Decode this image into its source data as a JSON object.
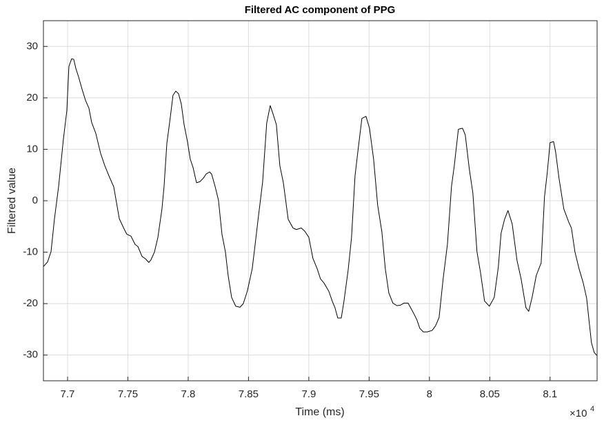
{
  "chart_data": {
    "type": "line",
    "title": "Filtered AC component of PPG",
    "x_label": "Time (ms)",
    "y_label": "Filtered value",
    "x_multiplier": "×10",
    "x_exponent": "4",
    "xlim": [
      76800,
      81390
    ],
    "ylim": [
      -35,
      35
    ],
    "xticks": [
      {
        "value": 77000,
        "label": "7.7"
      },
      {
        "value": 77500,
        "label": "7.75"
      },
      {
        "value": 78000,
        "label": "7.8"
      },
      {
        "value": 78500,
        "label": "7.85"
      },
      {
        "value": 79000,
        "label": "7.9"
      },
      {
        "value": 79500,
        "label": "7.95"
      },
      {
        "value": 80000,
        "label": "8"
      },
      {
        "value": 80500,
        "label": "8.05"
      },
      {
        "value": 81000,
        "label": "8.1"
      }
    ],
    "yticks": [
      -30,
      -20,
      -10,
      0,
      10,
      20,
      30
    ],
    "grid": true,
    "x": [
      76800,
      76834,
      76863,
      76891,
      76926,
      76966,
      76994,
      77011,
      77034,
      77051,
      77069,
      77091,
      77120,
      77149,
      77177,
      77200,
      77234,
      77274,
      77309,
      77349,
      77383,
      77429,
      77469,
      77491,
      77526,
      77560,
      77583,
      77617,
      77646,
      77674,
      77691,
      77720,
      77749,
      77783,
      77800,
      77823,
      77851,
      77874,
      77897,
      77920,
      77943,
      77966,
      77994,
      78017,
      78040,
      78069,
      78097,
      78126,
      78149,
      78177,
      78194,
      78223,
      78251,
      78280,
      78309,
      78331,
      78360,
      78394,
      78429,
      78457,
      78491,
      78531,
      78554,
      78583,
      78617,
      78651,
      78680,
      78703,
      78731,
      78760,
      78789,
      78829,
      78869,
      78897,
      78937,
      78966,
      79000,
      79034,
      79069,
      79097,
      79126,
      79166,
      79194,
      79217,
      79240,
      79269,
      79291,
      79326,
      79354,
      79383,
      79411,
      79440,
      79474,
      79503,
      79537,
      79571,
      79606,
      79634,
      79663,
      79697,
      79731,
      79760,
      79789,
      79823,
      79851,
      79874,
      79897,
      79920,
      79949,
      79983,
      80023,
      80051,
      80080,
      80114,
      80149,
      80183,
      80206,
      80240,
      80274,
      80297,
      80331,
      80360,
      80394,
      80423,
      80457,
      80497,
      80537,
      80571,
      80594,
      80623,
      80651,
      80686,
      80726,
      80760,
      80800,
      80823,
      80851,
      80886,
      80926,
      80954,
      80977,
      81000,
      81029,
      81046,
      81074,
      81114,
      81154,
      81177,
      81206,
      81240,
      81274,
      81303,
      81326,
      81343,
      81366,
      81389
    ],
    "series": [
      {
        "name": "Filtered value",
        "color": "#000000",
        "values": [
          -12.8,
          -11.9,
          -9.9,
          -3.6,
          2.8,
          12.1,
          17.5,
          26.1,
          27.6,
          27.5,
          25.7,
          24.1,
          21.7,
          19.5,
          18.0,
          15.2,
          13.1,
          9.2,
          6.8,
          4.5,
          2.7,
          -3.5,
          -5.5,
          -6.5,
          -6.9,
          -8.5,
          -8.9,
          -10.8,
          -11.3,
          -12.0,
          -11.5,
          -10.0,
          -7.1,
          -1.5,
          2.8,
          11.1,
          16.1,
          20.5,
          21.3,
          20.8,
          18.8,
          14.8,
          11.5,
          8.1,
          6.5,
          3.5,
          3.7,
          4.4,
          5.2,
          5.6,
          5.2,
          2.8,
          0.1,
          -6.5,
          -10.0,
          -14.5,
          -18.8,
          -20.5,
          -20.7,
          -20.0,
          -17.5,
          -13.2,
          -8.7,
          -2.9,
          3.6,
          15.1,
          18.5,
          16.9,
          14.8,
          6.8,
          3.5,
          -3.6,
          -5.3,
          -5.6,
          -5.3,
          -5.9,
          -7.1,
          -11.2,
          -13.2,
          -15.2,
          -16.0,
          -17.6,
          -19.5,
          -20.8,
          -22.8,
          -22.8,
          -19.6,
          -13.5,
          -7.2,
          4.8,
          10.4,
          16.0,
          16.4,
          14.1,
          8.1,
          -0.9,
          -6.1,
          -13.2,
          -17.9,
          -19.9,
          -20.4,
          -20.3,
          -19.9,
          -19.9,
          -21.1,
          -22.1,
          -23.2,
          -24.8,
          -25.5,
          -25.5,
          -25.2,
          -24.3,
          -22.7,
          -15.1,
          -8.5,
          2.8,
          6.8,
          13.9,
          14.1,
          12.8,
          6.1,
          1.5,
          -9.9,
          -13.9,
          -19.5,
          -20.5,
          -18.8,
          -12.9,
          -6.3,
          -3.6,
          -1.9,
          -4.5,
          -11.6,
          -15.2,
          -20.8,
          -21.5,
          -18.8,
          -14.5,
          -12.1,
          0.8,
          5.5,
          11.3,
          11.5,
          9.5,
          4.4,
          -1.6,
          -4.1,
          -5.3,
          -9.9,
          -13.2,
          -15.9,
          -18.9,
          -23.9,
          -27.6,
          -29.5,
          -30.1
        ]
      }
    ]
  }
}
